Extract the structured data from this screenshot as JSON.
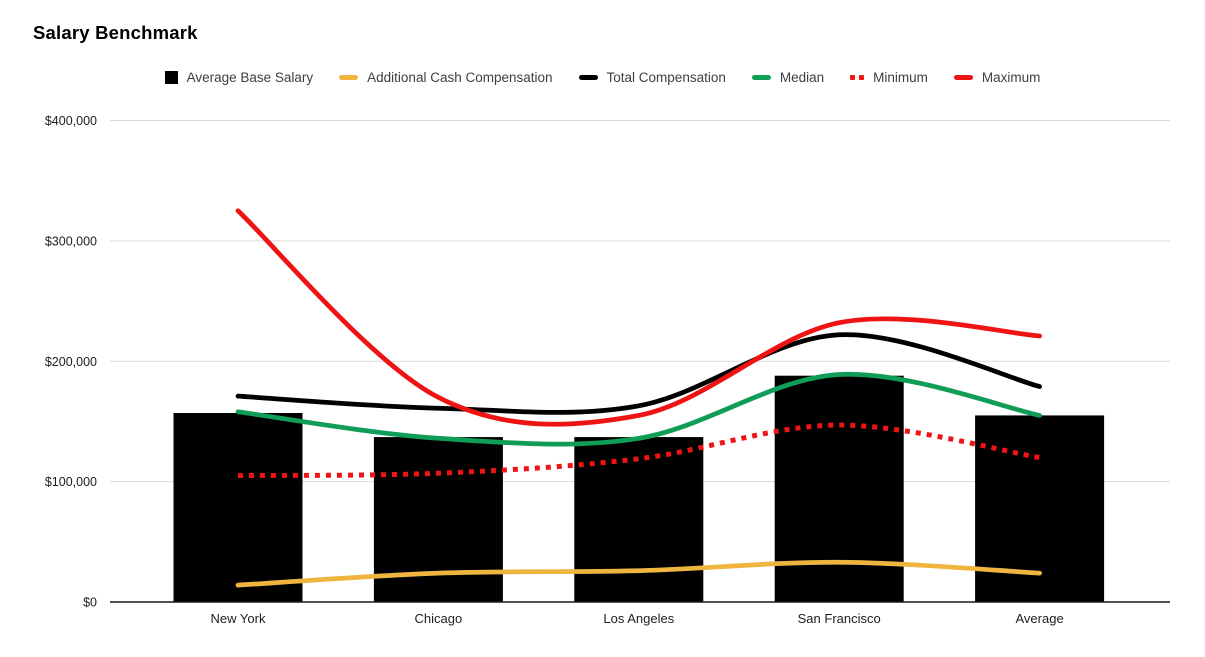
{
  "title": "Salary Benchmark",
  "colors": {
    "background": "#FFFFFF",
    "bar": "#000000",
    "yellow": "#EFB53E",
    "green": "#0F9D58",
    "red": "#EE1414",
    "black_line": "#000000",
    "grid": "#DADADA",
    "axis": "#1A1A1A",
    "tick_text": "#202124",
    "legend_text": "#3C4043"
  },
  "chart_data": {
    "type": "combo",
    "title": "Salary Benchmark",
    "categories": [
      "New York",
      "Chicago",
      "Los Angeles",
      "San Francisco",
      "Average"
    ],
    "series": [
      {
        "name": "Average Base Salary",
        "kind": "bar",
        "color": "#000000",
        "values": [
          157000,
          137000,
          137000,
          188000,
          155000
        ]
      },
      {
        "name": "Additional Cash Compensation",
        "kind": "line",
        "style": "solid",
        "color": "#EFB53E",
        "values": [
          14000,
          24000,
          26000,
          33000,
          24000
        ]
      },
      {
        "name": "Total Compensation",
        "kind": "line",
        "style": "solid",
        "color": "#000000",
        "values": [
          171000,
          161000,
          163000,
          222000,
          179000
        ]
      },
      {
        "name": "Median",
        "kind": "line",
        "style": "solid",
        "color": "#0F9D58",
        "values": [
          158000,
          136000,
          136000,
          189000,
          155000
        ]
      },
      {
        "name": "Minimum",
        "kind": "line",
        "style": "dotted",
        "color": "#EE1414",
        "values": [
          105000,
          107000,
          119000,
          147000,
          120000
        ]
      },
      {
        "name": "Maximum",
        "kind": "line",
        "style": "solid",
        "color": "#EE1414",
        "values": [
          325000,
          170000,
          155000,
          232000,
          221000
        ]
      }
    ],
    "ylim": [
      0,
      400000
    ],
    "yticks": [
      {
        "value": 0,
        "label": "$0"
      },
      {
        "value": 100000,
        "label": "$100,000"
      },
      {
        "value": 200000,
        "label": "$200,000"
      },
      {
        "value": 300000,
        "label": "$300,000"
      },
      {
        "value": 400000,
        "label": "$400,000"
      }
    ],
    "grid": true,
    "legend_position": "top",
    "line_smoothing": true
  }
}
